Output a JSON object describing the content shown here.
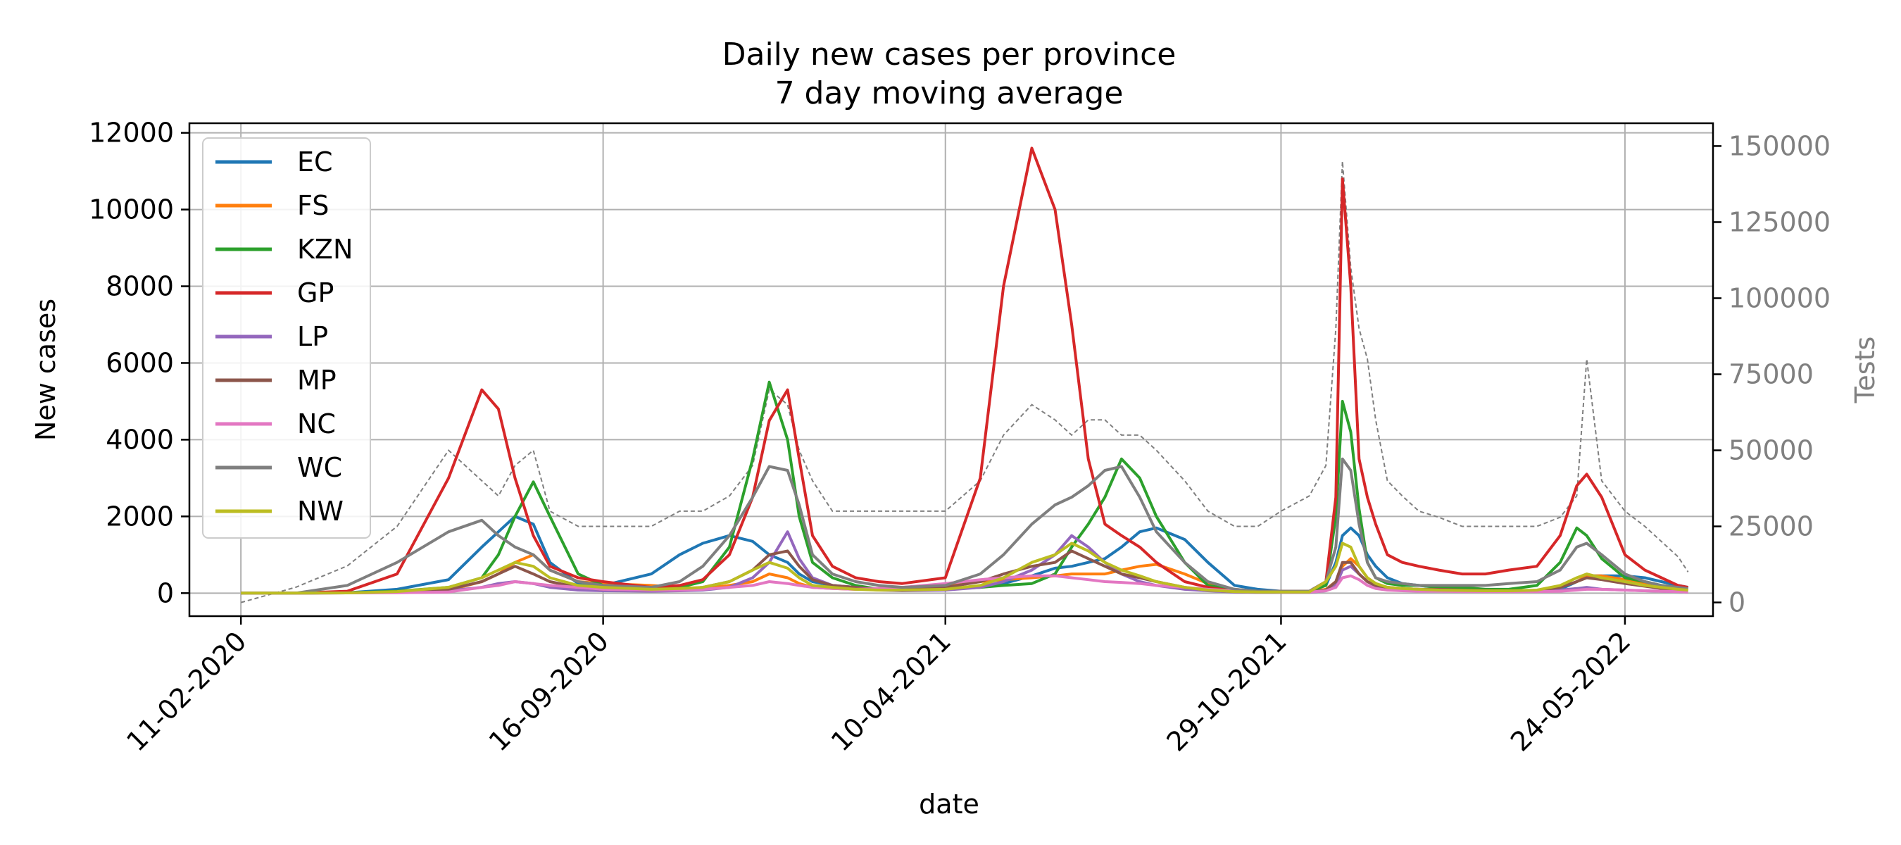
{
  "chart_data": {
    "type": "line",
    "title": "Daily new cases per province",
    "subtitle": "7 day moving average",
    "xlabel": "date",
    "ylabel": "New cases",
    "y2label": "Tests",
    "x_tick_labels": [
      "11-02-2020",
      "16-09-2020",
      "10-04-2021",
      "29-10-2021",
      "24-05-2022"
    ],
    "y_ticks": [
      0,
      2000,
      4000,
      6000,
      8000,
      10000,
      12000
    ],
    "y2_ticks": [
      0,
      25000,
      50000,
      75000,
      100000,
      125000,
      150000
    ],
    "xlim": [
      "2020-01-11",
      "2022-07-16"
    ],
    "ylim": [
      -600,
      12250
    ],
    "y2lim": [
      -4500,
      157500
    ],
    "grid": true,
    "legend_position": "top-left",
    "x": [
      "2020-02-11",
      "2020-03-15",
      "2020-04-15",
      "2020-05-15",
      "2020-06-15",
      "2020-07-05",
      "2020-07-15",
      "2020-07-25",
      "2020-08-05",
      "2020-08-15",
      "2020-09-01",
      "2020-09-16",
      "2020-10-15",
      "2020-11-01",
      "2020-11-15",
      "2020-12-01",
      "2020-12-15",
      "2020-12-25",
      "2021-01-05",
      "2021-01-12",
      "2021-01-20",
      "2021-02-01",
      "2021-02-15",
      "2021-03-01",
      "2021-03-15",
      "2021-04-10",
      "2021-05-01",
      "2021-05-15",
      "2021-06-01",
      "2021-06-15",
      "2021-06-25",
      "2021-07-05",
      "2021-07-15",
      "2021-07-25",
      "2021-08-05",
      "2021-08-15",
      "2021-09-01",
      "2021-09-15",
      "2021-10-01",
      "2021-10-15",
      "2021-10-29",
      "2021-11-15",
      "2021-11-25",
      "2021-12-01",
      "2021-12-05",
      "2021-12-10",
      "2021-12-15",
      "2021-12-20",
      "2021-12-25",
      "2022-01-01",
      "2022-01-10",
      "2022-01-20",
      "2022-02-01",
      "2022-02-15",
      "2022-03-01",
      "2022-03-15",
      "2022-04-01",
      "2022-04-15",
      "2022-04-25",
      "2022-05-01",
      "2022-05-10",
      "2022-05-24",
      "2022-06-05",
      "2022-06-15",
      "2022-06-25",
      "2022-07-01"
    ],
    "series": [
      {
        "name": "EC",
        "color": "#1f77b4",
        "values": [
          0,
          0,
          10,
          100,
          350,
          1200,
          1600,
          2000,
          1800,
          800,
          250,
          200,
          500,
          1000,
          1300,
          1500,
          1350,
          1000,
          800,
          500,
          300,
          200,
          150,
          100,
          100,
          120,
          150,
          250,
          450,
          650,
          700,
          800,
          900,
          1200,
          1600,
          1700,
          1400,
          800,
          200,
          100,
          50,
          50,
          200,
          800,
          1500,
          1700,
          1500,
          1000,
          700,
          400,
          250,
          200,
          150,
          100,
          80,
          60,
          50,
          100,
          300,
          450,
          450,
          450,
          400,
          300,
          200,
          150
        ]
      },
      {
        "name": "FS",
        "color": "#ff7f0e",
        "values": [
          0,
          0,
          10,
          30,
          80,
          300,
          500,
          800,
          1000,
          600,
          300,
          250,
          200,
          150,
          120,
          200,
          300,
          500,
          400,
          250,
          150,
          120,
          100,
          120,
          150,
          200,
          300,
          350,
          400,
          450,
          500,
          500,
          500,
          600,
          700,
          750,
          500,
          250,
          100,
          50,
          30,
          30,
          100,
          300,
          700,
          900,
          700,
          400,
          250,
          150,
          120,
          100,
          80,
          70,
          60,
          60,
          70,
          150,
          300,
          450,
          450,
          350,
          250,
          150,
          100,
          80
        ]
      },
      {
        "name": "KZN",
        "color": "#2ca02c",
        "values": [
          0,
          0,
          10,
          50,
          150,
          400,
          1000,
          2000,
          2900,
          2000,
          500,
          200,
          150,
          150,
          300,
          1200,
          3500,
          5500,
          4000,
          2000,
          800,
          400,
          200,
          100,
          100,
          100,
          150,
          200,
          250,
          500,
          1200,
          1800,
          2500,
          3500,
          3000,
          2000,
          800,
          200,
          80,
          50,
          50,
          50,
          200,
          2000,
          5000,
          4200,
          2200,
          800,
          400,
          250,
          200,
          200,
          150,
          150,
          100,
          100,
          200,
          800,
          1700,
          1500,
          900,
          400,
          300,
          200,
          150,
          120
        ]
      },
      {
        "name": "GP",
        "color": "#d62728",
        "values": [
          0,
          0,
          50,
          500,
          3000,
          5300,
          4800,
          3000,
          1500,
          700,
          400,
          300,
          150,
          200,
          350,
          1000,
          2500,
          4500,
          5300,
          3500,
          1500,
          700,
          400,
          300,
          250,
          400,
          3000,
          8000,
          11600,
          10000,
          7000,
          3500,
          1800,
          1500,
          1200,
          800,
          300,
          150,
          50,
          50,
          50,
          50,
          300,
          2500,
          10800,
          8000,
          3500,
          2500,
          1800,
          1000,
          800,
          700,
          600,
          500,
          500,
          600,
          700,
          1500,
          2800,
          3100,
          2500,
          1000,
          600,
          400,
          200,
          150
        ]
      },
      {
        "name": "LP",
        "color": "#9467bd",
        "values": [
          0,
          0,
          5,
          20,
          60,
          150,
          250,
          300,
          250,
          150,
          80,
          60,
          50,
          60,
          80,
          150,
          400,
          800,
          1600,
          900,
          400,
          200,
          120,
          80,
          60,
          80,
          150,
          300,
          600,
          1000,
          1500,
          1200,
          800,
          500,
          300,
          200,
          100,
          60,
          30,
          20,
          20,
          20,
          60,
          200,
          600,
          700,
          500,
          300,
          180,
          120,
          100,
          80,
          70,
          60,
          50,
          50,
          50,
          80,
          120,
          150,
          100,
          80,
          60,
          50,
          40,
          30
        ]
      },
      {
        "name": "MP",
        "color": "#8c564b",
        "values": [
          0,
          0,
          5,
          30,
          100,
          300,
          500,
          700,
          500,
          300,
          150,
          100,
          80,
          100,
          150,
          300,
          600,
          1000,
          1100,
          700,
          350,
          200,
          150,
          100,
          100,
          150,
          300,
          500,
          700,
          800,
          1100,
          900,
          700,
          500,
          400,
          300,
          150,
          80,
          40,
          30,
          30,
          30,
          80,
          300,
          800,
          800,
          500,
          300,
          200,
          150,
          120,
          100,
          100,
          80,
          70,
          60,
          70,
          150,
          300,
          400,
          350,
          250,
          180,
          120,
          100,
          80
        ]
      },
      {
        "name": "NC",
        "color": "#e377c2",
        "values": [
          0,
          0,
          5,
          10,
          30,
          150,
          200,
          300,
          250,
          200,
          150,
          100,
          80,
          80,
          100,
          150,
          200,
          300,
          250,
          200,
          150,
          120,
          100,
          120,
          150,
          250,
          350,
          400,
          450,
          450,
          400,
          350,
          300,
          280,
          250,
          200,
          150,
          100,
          60,
          40,
          30,
          30,
          60,
          150,
          400,
          450,
          350,
          200,
          120,
          80,
          60,
          50,
          50,
          40,
          40,
          40,
          40,
          50,
          80,
          100,
          100,
          80,
          60,
          50,
          40,
          30
        ]
      },
      {
        "name": "WC",
        "color": "#7f7f7f",
        "values": [
          0,
          0,
          200,
          800,
          1600,
          1900,
          1500,
          1200,
          1000,
          600,
          300,
          200,
          150,
          300,
          700,
          1500,
          2500,
          3300,
          3200,
          2300,
          1000,
          500,
          300,
          200,
          150,
          200,
          500,
          1000,
          1800,
          2300,
          2500,
          2800,
          3200,
          3300,
          2500,
          1600,
          800,
          300,
          100,
          50,
          50,
          50,
          300,
          1200,
          3500,
          3200,
          1800,
          800,
          400,
          300,
          250,
          200,
          200,
          200,
          200,
          250,
          300,
          600,
          1200,
          1300,
          1000,
          500,
          300,
          200,
          150,
          120
        ]
      },
      {
        "name": "NW",
        "color": "#bcbd22",
        "values": [
          0,
          0,
          5,
          40,
          150,
          400,
          600,
          800,
          700,
          400,
          200,
          150,
          100,
          120,
          150,
          300,
          600,
          800,
          650,
          400,
          200,
          150,
          100,
          80,
          80,
          100,
          200,
          400,
          800,
          1000,
          1300,
          1100,
          800,
          600,
          450,
          300,
          150,
          80,
          40,
          30,
          30,
          30,
          300,
          700,
          1300,
          1200,
          700,
          400,
          250,
          150,
          120,
          100,
          80,
          70,
          60,
          60,
          80,
          200,
          400,
          500,
          400,
          300,
          200,
          150,
          100,
          80
        ]
      }
    ],
    "tests_series": {
      "color": "#808080",
      "values": [
        0,
        5000,
        12000,
        25000,
        50000,
        40000,
        35000,
        45000,
        50000,
        30000,
        25000,
        25000,
        25000,
        30000,
        30000,
        35000,
        45000,
        70000,
        65000,
        50000,
        40000,
        30000,
        30000,
        30000,
        30000,
        30000,
        40000,
        55000,
        65000,
        60000,
        55000,
        60000,
        60000,
        55000,
        55000,
        50000,
        40000,
        30000,
        25000,
        25000,
        30000,
        35000,
        45000,
        90000,
        145000,
        110000,
        90000,
        80000,
        60000,
        40000,
        35000,
        30000,
        28000,
        25000,
        25000,
        25000,
        25000,
        28000,
        35000,
        80000,
        40000,
        30000,
        25000,
        20000,
        15000,
        10000
      ]
    }
  }
}
